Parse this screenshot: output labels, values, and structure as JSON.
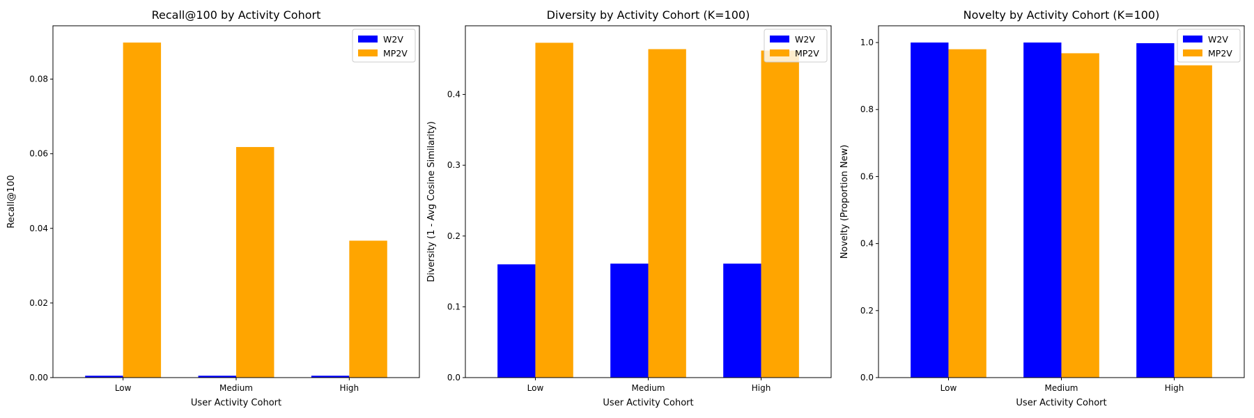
{
  "chart_data": [
    {
      "type": "bar",
      "title": "Recall@100 by Activity Cohort",
      "xlabel": "User Activity Cohort",
      "ylabel": "Recall@100",
      "categories": [
        "Low",
        "Medium",
        "High"
      ],
      "series": [
        {
          "name": "W2V",
          "color": "#0000ff",
          "values": [
            0.0005,
            0.0005,
            0.0005
          ]
        },
        {
          "name": "MP2V",
          "color": "#ffa500",
          "values": [
            0.0898,
            0.0618,
            0.0367
          ]
        }
      ],
      "ylim": [
        0,
        0.0943
      ],
      "yticks": [
        "0.00",
        "0.02",
        "0.04",
        "0.06",
        "0.08"
      ],
      "grid": false,
      "legend_position": "top-right"
    },
    {
      "type": "bar",
      "title": "Diversity by Activity Cohort (K=100)",
      "xlabel": "User Activity Cohort",
      "ylabel": "Diversity (1 - Avg Cosine Similarity)",
      "categories": [
        "Low",
        "Medium",
        "High"
      ],
      "series": [
        {
          "name": "W2V",
          "color": "#0000ff",
          "values": [
            0.16,
            0.161,
            0.161
          ]
        },
        {
          "name": "MP2V",
          "color": "#ffa500",
          "values": [
            0.473,
            0.464,
            0.462
          ]
        }
      ],
      "ylim": [
        0,
        0.497
      ],
      "yticks": [
        "0.0",
        "0.1",
        "0.2",
        "0.3",
        "0.4"
      ],
      "grid": false,
      "legend_position": "top-right"
    },
    {
      "type": "bar",
      "title": "Novelty by Activity Cohort (K=100)",
      "xlabel": "User Activity Cohort",
      "ylabel": "Novelty (Proportion New)",
      "categories": [
        "Low",
        "Medium",
        "High"
      ],
      "series": [
        {
          "name": "W2V",
          "color": "#0000ff",
          "values": [
            1.0,
            1.0,
            0.998
          ]
        },
        {
          "name": "MP2V",
          "color": "#ffa500",
          "values": [
            0.98,
            0.968,
            0.932
          ]
        }
      ],
      "ylim": [
        0,
        1.05
      ],
      "yticks": [
        "0.0",
        "0.2",
        "0.4",
        "0.6",
        "0.8",
        "1.0"
      ],
      "grid": false,
      "legend_position": "top-right"
    }
  ]
}
